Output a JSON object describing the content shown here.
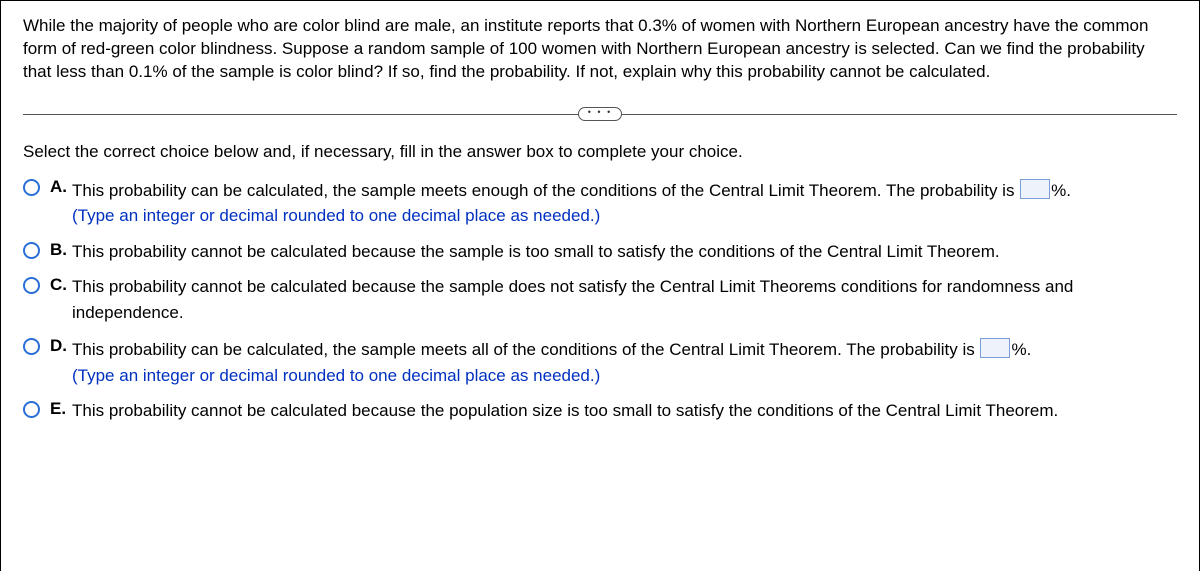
{
  "question": "While the majority of people who are color blind are male, an institute reports that 0.3% of women with Northern European ancestry have the common form of red-green color blindness. Suppose a random sample of 100 women with Northern European ancestry is selected. Can we find the probability that less than 0.1% of the sample is color blind? If so, find the probability. If not, explain why this probability cannot be calculated.",
  "pill_dots": "• • •",
  "instruction": "Select the correct choice below and, if necessary, fill in the answer box to complete your choice.",
  "choices": {
    "A": {
      "letter": "A.",
      "pre": "This probability can be calculated, the sample meets enough of the conditions of the Central Limit Theorem. The probability is ",
      "post": "%.",
      "hint": "(Type an integer or decimal rounded to one decimal place as needed.)",
      "has_input": true
    },
    "B": {
      "letter": "B.",
      "text": "This probability cannot be calculated because the sample is too small to satisfy the conditions of the Central Limit Theorem."
    },
    "C": {
      "letter": "C.",
      "text": "This probability cannot be calculated because the sample does not satisfy the Central Limit Theorems conditions for randomness and independence."
    },
    "D": {
      "letter": "D.",
      "pre": "This probability can be calculated, the sample meets all of the conditions of the Central Limit Theorem. The probability is ",
      "post": "%.",
      "hint": "(Type an integer or decimal rounded to one decimal place as needed.)",
      "has_input": true
    },
    "E": {
      "letter": "E.",
      "text": "This probability cannot be calculated because the population size is too small to satisfy the conditions of the Central Limit Theorem."
    }
  },
  "colors": {
    "radio_border": "#2a6fd6",
    "hint_text": "#0030c0",
    "input_bg": "#eef3fb",
    "input_border": "#7a9ed9"
  }
}
